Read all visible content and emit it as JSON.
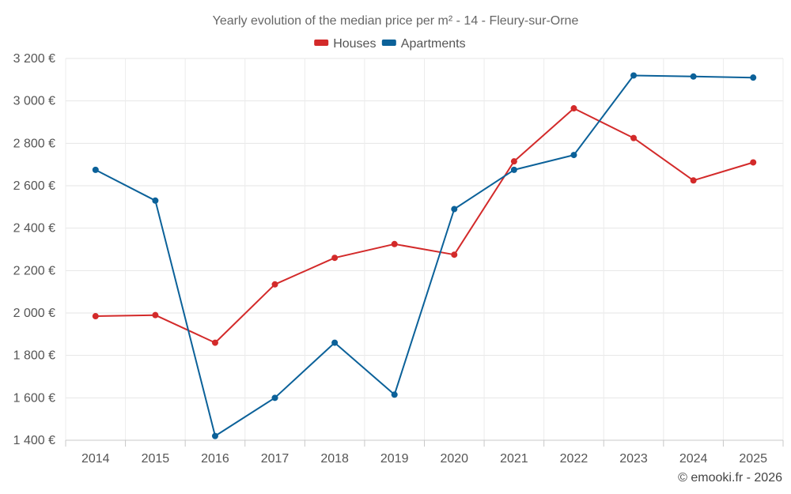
{
  "chart_data": {
    "type": "line",
    "title": "Yearly evolution of the median price per m² - 14 - Fleury-sur-Orne",
    "categories": [
      "2014",
      "2015",
      "2016",
      "2017",
      "2018",
      "2019",
      "2020",
      "2021",
      "2022",
      "2023",
      "2024",
      "2025"
    ],
    "series": [
      {
        "name": "Houses",
        "color": "#d32a2a",
        "values": [
          1985,
          1990,
          1860,
          2135,
          2260,
          2325,
          2275,
          2715,
          2965,
          2825,
          2625,
          2710
        ]
      },
      {
        "name": "Apartments",
        "color": "#0b6199",
        "values": [
          2675,
          2530,
          1420,
          1600,
          1860,
          1615,
          2490,
          2675,
          2745,
          3120,
          3115,
          3110
        ]
      }
    ],
    "ylim": [
      1400,
      3200
    ],
    "yticks": [
      1400,
      1600,
      1800,
      2000,
      2200,
      2400,
      2600,
      2800,
      3000,
      3200
    ],
    "ytick_labels": [
      "1 400 €",
      "1 600 €",
      "1 800 €",
      "2 000 €",
      "2 200 €",
      "2 400 €",
      "2 600 €",
      "2 800 €",
      "3 000 €",
      "3 200 €"
    ],
    "xlabel": "",
    "ylabel": "",
    "grid": true,
    "legend_position": "top-center",
    "credit": "© emooki.fr - 2026"
  }
}
